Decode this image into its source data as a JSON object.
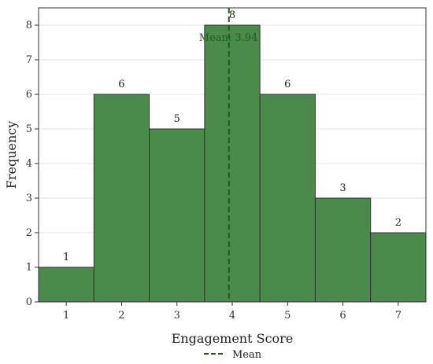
{
  "chart_data": {
    "type": "bar",
    "categories": [
      "1",
      "2",
      "3",
      "4",
      "5",
      "6",
      "7"
    ],
    "values": [
      1,
      6,
      5,
      8,
      6,
      3,
      2
    ],
    "title": "",
    "xlabel": "Engagement Score",
    "ylabel": "Frequency",
    "ylim": [
      0,
      8.5
    ],
    "yticks": [
      "0",
      "1",
      "2",
      "3",
      "4",
      "5",
      "6",
      "7",
      "8"
    ],
    "xticks": [
      "1",
      "2",
      "3",
      "4",
      "5",
      "6",
      "7"
    ],
    "mean": 3.94,
    "mean_label": "Mean: 3.94",
    "legend": [
      {
        "label": "Mean",
        "style": "dashed"
      }
    ],
    "legend_position": "bottom-center",
    "grid": "horizontal",
    "bar_color": "#4a8a4a",
    "bar_edge_color": "#333333",
    "mean_line_color": "#1a5c1a"
  }
}
